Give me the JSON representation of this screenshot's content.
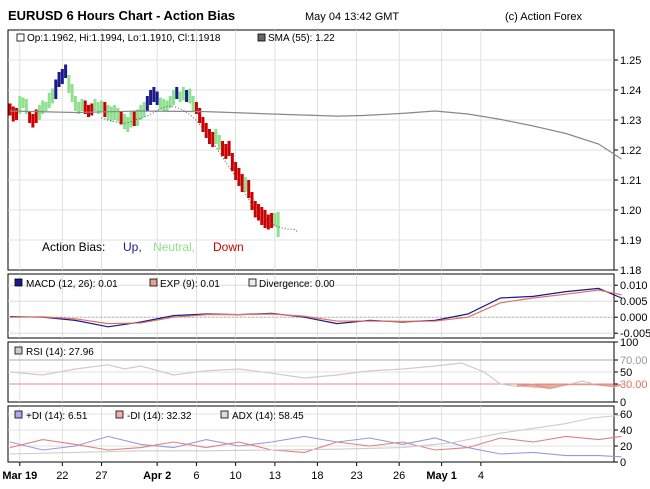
{
  "header": {
    "title": "EURUSD 6 Hours Chart - Action Bias",
    "timestamp": "May 04 13:42 GMT",
    "copyright": "(c) Action Forex"
  },
  "colors": {
    "up": "#1a1a8c",
    "neutral": "#8fe08f",
    "down": "#cc0000",
    "sma": "#888888",
    "macd": "#1a1a8c",
    "exp": "#e07060",
    "rsi": "#cccccc",
    "rsi_fill": "#e07060",
    "plus_di": "#9999dd",
    "minus_di": "#e08080",
    "adx": "#cccccc"
  },
  "chart_data": [
    {
      "type": "bar",
      "panel": "price",
      "legend": {
        "ohlc": "Op:1.1962, Hi:1.1994, Lo:1.1910, Cl:1.1918",
        "sma": "SMA (55): 1.22",
        "bias_label": "Action Bias:",
        "bias_up": "Up,",
        "bias_neutral": "Neutral,",
        "bias_down": "Down"
      },
      "ylim": [
        1.18,
        1.26
      ],
      "y_ticks": [
        "1.25",
        "1.24",
        "1.23",
        "1.22",
        "1.21",
        "1.20",
        "1.19",
        "1.18"
      ],
      "grid": true,
      "bars": [
        [
          1.2355,
          1.2315,
          "d"
        ],
        [
          1.2345,
          1.2295,
          "d"
        ],
        [
          1.234,
          1.23,
          "d"
        ],
        [
          1.238,
          1.232,
          "n"
        ],
        [
          1.2375,
          1.234,
          "n"
        ],
        [
          1.237,
          1.232,
          "n"
        ],
        [
          1.233,
          1.229,
          "d"
        ],
        [
          1.232,
          1.2275,
          "d"
        ],
        [
          1.2335,
          1.229,
          "d"
        ],
        [
          1.235,
          1.23,
          "n"
        ],
        [
          1.2365,
          1.232,
          "n"
        ],
        [
          1.236,
          1.233,
          "n"
        ],
        [
          1.239,
          1.234,
          "n"
        ],
        [
          1.2405,
          1.2355,
          "n"
        ],
        [
          1.2435,
          1.237,
          "u"
        ],
        [
          1.246,
          1.241,
          "u"
        ],
        [
          1.247,
          1.242,
          "u"
        ],
        [
          1.2485,
          1.244,
          "u"
        ],
        [
          1.245,
          1.239,
          "n"
        ],
        [
          1.242,
          1.236,
          "n"
        ],
        [
          1.238,
          1.233,
          "n"
        ],
        [
          1.236,
          1.232,
          "n"
        ],
        [
          1.237,
          1.233,
          "n"
        ],
        [
          1.2365,
          1.232,
          "d"
        ],
        [
          1.235,
          1.231,
          "d"
        ],
        [
          1.2355,
          1.2315,
          "d"
        ],
        [
          1.237,
          1.233,
          "n"
        ],
        [
          1.236,
          1.232,
          "n"
        ],
        [
          1.2365,
          1.2325,
          "n"
        ],
        [
          1.236,
          1.231,
          "d"
        ],
        [
          1.235,
          1.23,
          "n"
        ],
        [
          1.2345,
          1.2295,
          "n"
        ],
        [
          1.235,
          1.23,
          "n"
        ],
        [
          1.234,
          1.2295,
          "n"
        ],
        [
          1.233,
          1.2285,
          "d"
        ],
        [
          1.232,
          1.227,
          "n"
        ],
        [
          1.231,
          1.226,
          "n"
        ],
        [
          1.233,
          1.2275,
          "n"
        ],
        [
          1.233,
          1.228,
          "d"
        ],
        [
          1.2335,
          1.228,
          "n"
        ],
        [
          1.235,
          1.23,
          "n"
        ],
        [
          1.236,
          1.231,
          "n"
        ],
        [
          1.238,
          1.233,
          "u"
        ],
        [
          1.24,
          1.235,
          "u"
        ],
        [
          1.241,
          1.236,
          "u"
        ],
        [
          1.2395,
          1.235,
          "u"
        ],
        [
          1.2375,
          1.2335,
          "n"
        ],
        [
          1.237,
          1.233,
          "n"
        ],
        [
          1.2365,
          1.233,
          "n"
        ],
        [
          1.238,
          1.234,
          "n"
        ],
        [
          1.24,
          1.235,
          "n"
        ],
        [
          1.241,
          1.237,
          "u"
        ],
        [
          1.2395,
          1.236,
          "n"
        ],
        [
          1.241,
          1.2365,
          "n"
        ],
        [
          1.24,
          1.236,
          "u"
        ],
        [
          1.2405,
          1.2355,
          "n"
        ],
        [
          1.238,
          1.233,
          "n"
        ],
        [
          1.236,
          1.232,
          "d"
        ],
        [
          1.234,
          1.229,
          "d"
        ],
        [
          1.231,
          1.226,
          "d"
        ],
        [
          1.229,
          1.224,
          "d"
        ],
        [
          1.227,
          1.222,
          "d"
        ],
        [
          1.226,
          1.221,
          "d"
        ],
        [
          1.227,
          1.222,
          "n"
        ],
        [
          1.225,
          1.22,
          "n"
        ],
        [
          1.223,
          1.218,
          "d"
        ],
        [
          1.222,
          1.217,
          "d"
        ],
        [
          1.223,
          1.218,
          "d"
        ],
        [
          1.219,
          1.213,
          "d"
        ],
        [
          1.216,
          1.21,
          "d"
        ],
        [
          1.214,
          1.208,
          "d"
        ],
        [
          1.212,
          1.206,
          "d"
        ],
        [
          1.211,
          1.206,
          "n"
        ],
        [
          1.21,
          1.204,
          "d"
        ],
        [
          1.206,
          1.2,
          "d"
        ],
        [
          1.203,
          1.1975,
          "d"
        ],
        [
          1.202,
          1.1965,
          "d"
        ],
        [
          1.201,
          1.195,
          "d"
        ],
        [
          1.2,
          1.194,
          "d"
        ],
        [
          1.1985,
          1.1935,
          "d"
        ],
        [
          1.199,
          1.194,
          "d"
        ],
        [
          1.199,
          1.1945,
          "n"
        ],
        [
          1.1994,
          1.191,
          "n"
        ]
      ],
      "sma": [
        [
          0,
          1.233
        ],
        [
          20,
          1.2325
        ],
        [
          40,
          1.233
        ],
        [
          60,
          1.2328
        ],
        [
          80,
          1.232
        ],
        [
          100,
          1.2313
        ],
        [
          108,
          1.2315
        ],
        [
          120,
          1.2322
        ],
        [
          130,
          1.233
        ],
        [
          140,
          1.232
        ],
        [
          150,
          1.2302
        ],
        [
          160,
          1.228
        ],
        [
          170,
          1.2255
        ],
        [
          180,
          1.222
        ],
        [
          187,
          1.217
        ]
      ]
    },
    {
      "type": "line",
      "panel": "macd",
      "legend": {
        "macd": "MACD (12, 26): 0.01",
        "exp": "EXP (9): 0.01",
        "divergence": "Divergence: 0.00"
      },
      "ylim": [
        -0.0065,
        0.0135
      ],
      "y_ticks": [
        "0.010",
        "0.005",
        "0.000",
        "-0.005"
      ],
      "series": [
        {
          "name": "MACD (12, 26)",
          "points": [
            [
              0,
              0.0002
            ],
            [
              10,
              0.0
            ],
            [
              20,
              -0.001
            ],
            [
              30,
              -0.003
            ],
            [
              40,
              -0.0015
            ],
            [
              50,
              0.0005
            ],
            [
              60,
              0.001
            ],
            [
              70,
              0.0008
            ],
            [
              80,
              0.0012
            ],
            [
              90,
              0.0
            ],
            [
              100,
              -0.002
            ],
            [
              110,
              -0.001
            ],
            [
              120,
              -0.0015
            ],
            [
              130,
              -0.001
            ],
            [
              140,
              0.001
            ],
            [
              150,
              0.006
            ],
            [
              160,
              0.0065
            ],
            [
              170,
              0.008
            ],
            [
              180,
              0.009
            ],
            [
              187,
              0.006
            ]
          ]
        },
        {
          "name": "EXP (9)",
          "points": [
            [
              0,
              0.0
            ],
            [
              10,
              0.0001
            ],
            [
              20,
              -0.0005
            ],
            [
              30,
              -0.002
            ],
            [
              40,
              -0.0018
            ],
            [
              50,
              0.0
            ],
            [
              60,
              0.0008
            ],
            [
              70,
              0.0008
            ],
            [
              80,
              0.001
            ],
            [
              90,
              0.0003
            ],
            [
              100,
              -0.0012
            ],
            [
              110,
              -0.0012
            ],
            [
              120,
              -0.0013
            ],
            [
              130,
              -0.0012
            ],
            [
              140,
              0.0
            ],
            [
              150,
              0.0045
            ],
            [
              160,
              0.006
            ],
            [
              170,
              0.0072
            ],
            [
              180,
              0.0085
            ],
            [
              187,
              0.007
            ]
          ]
        }
      ]
    },
    {
      "type": "area",
      "panel": "rsi",
      "legend": {
        "rsi": "RSI (14): 27.96"
      },
      "ylim": [
        0,
        100
      ],
      "y_ticks": [
        "100",
        "70.00",
        "50",
        "30.00",
        "0"
      ],
      "levels": [
        70,
        30
      ],
      "series": [
        {
          "name": "RSI (14)",
          "points": [
            [
              0,
              50
            ],
            [
              10,
              45
            ],
            [
              20,
              55
            ],
            [
              30,
              62
            ],
            [
              35,
              55
            ],
            [
              40,
              60
            ],
            [
              50,
              45
            ],
            [
              60,
              52
            ],
            [
              70,
              55
            ],
            [
              80,
              48
            ],
            [
              90,
              40
            ],
            [
              100,
              45
            ],
            [
              110,
              52
            ],
            [
              120,
              55
            ],
            [
              130,
              60
            ],
            [
              138,
              65
            ],
            [
              145,
              50
            ],
            [
              150,
              30
            ],
            [
              155,
              26
            ],
            [
              160,
              30
            ],
            [
              165,
              22
            ],
            [
              170,
              28
            ],
            [
              175,
              35
            ],
            [
              180,
              28
            ],
            [
              185,
              25
            ],
            [
              187,
              28
            ]
          ]
        }
      ]
    },
    {
      "type": "line",
      "panel": "dmi",
      "legend": {
        "plus_di": "+DI (14): 6.51",
        "minus_di": "-DI (14): 32.32",
        "adx": "ADX (14): 58.45"
      },
      "ylim": [
        0,
        70
      ],
      "y_ticks": [
        "60",
        "40",
        "20",
        "0"
      ],
      "series": [
        {
          "name": "+DI (14)",
          "points": [
            [
              0,
              25
            ],
            [
              10,
              15
            ],
            [
              20,
              20
            ],
            [
              30,
              32
            ],
            [
              40,
              22
            ],
            [
              50,
              18
            ],
            [
              60,
              28
            ],
            [
              70,
              20
            ],
            [
              80,
              25
            ],
            [
              90,
              32
            ],
            [
              100,
              25
            ],
            [
              110,
              30
            ],
            [
              120,
              22
            ],
            [
              130,
              30
            ],
            [
              140,
              18
            ],
            [
              150,
              10
            ],
            [
              160,
              12
            ],
            [
              170,
              8
            ],
            [
              180,
              8
            ],
            [
              187,
              6.5
            ]
          ]
        },
        {
          "name": "-DI (14)",
          "points": [
            [
              0,
              18
            ],
            [
              10,
              28
            ],
            [
              20,
              22
            ],
            [
              30,
              15
            ],
            [
              40,
              18
            ],
            [
              50,
              25
            ],
            [
              60,
              18
            ],
            [
              70,
              25
            ],
            [
              80,
              15
            ],
            [
              90,
              12
            ],
            [
              100,
              25
            ],
            [
              110,
              20
            ],
            [
              120,
              25
            ],
            [
              130,
              15
            ],
            [
              140,
              18
            ],
            [
              150,
              30
            ],
            [
              160,
              25
            ],
            [
              170,
              32
            ],
            [
              180,
              28
            ],
            [
              187,
              32
            ]
          ]
        },
        {
          "name": "ADX (14)",
          "points": [
            [
              0,
              10
            ],
            [
              20,
              12
            ],
            [
              40,
              14
            ],
            [
              60,
              14
            ],
            [
              80,
              15
            ],
            [
              100,
              16
            ],
            [
              120,
              18
            ],
            [
              135,
              24
            ],
            [
              150,
              36
            ],
            [
              160,
              42
            ],
            [
              170,
              48
            ],
            [
              178,
              55
            ],
            [
              187,
              58.5
            ]
          ]
        }
      ]
    }
  ],
  "x_axis": {
    "labels": [
      {
        "bar": 3,
        "text": "Mar 19",
        "bold": true
      },
      {
        "bar": 16,
        "text": "22",
        "bold": false
      },
      {
        "bar": 28,
        "text": "27",
        "bold": false
      },
      {
        "bar": 45,
        "text": "Apr 2",
        "bold": true
      },
      {
        "bar": 57,
        "text": "6",
        "bold": false
      },
      {
        "bar": 69,
        "text": "10",
        "bold": false
      },
      {
        "bar": 81,
        "text": "13",
        "bold": false
      },
      {
        "bar": 94,
        "text": "18",
        "bold": false
      },
      {
        "bar": 106,
        "text": "23",
        "bold": false
      },
      {
        "bar": 119,
        "text": "26",
        "bold": false
      },
      {
        "bar": 132,
        "text": "May 1",
        "bold": true
      },
      {
        "bar": 144,
        "text": "4",
        "bold": false
      }
    ]
  }
}
